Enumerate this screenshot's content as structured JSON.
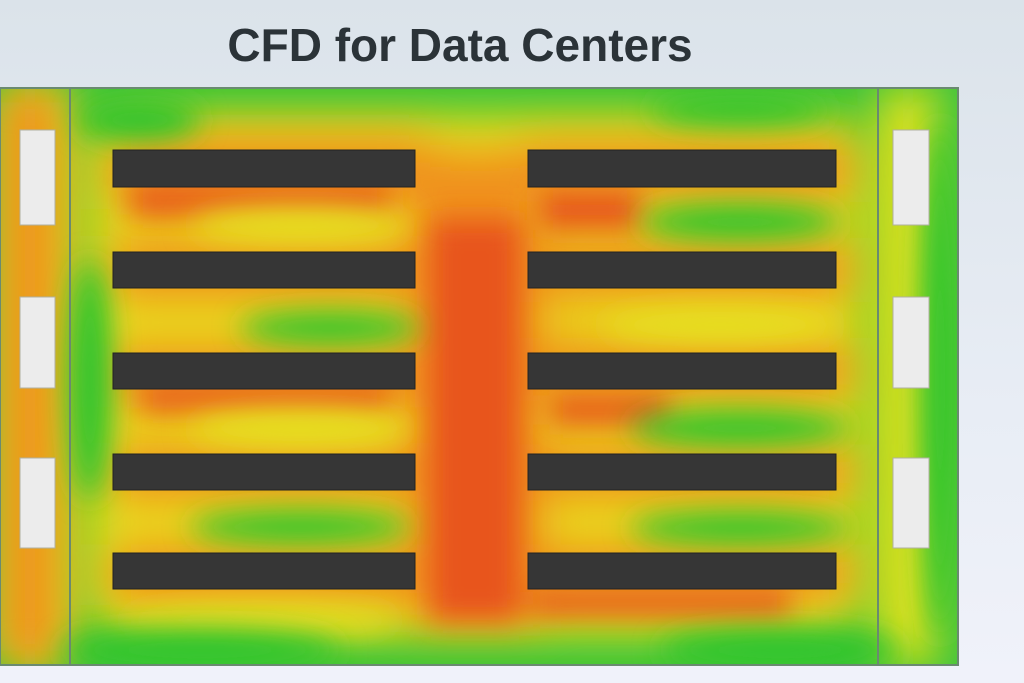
{
  "title": "CFD for Data Centers"
}
